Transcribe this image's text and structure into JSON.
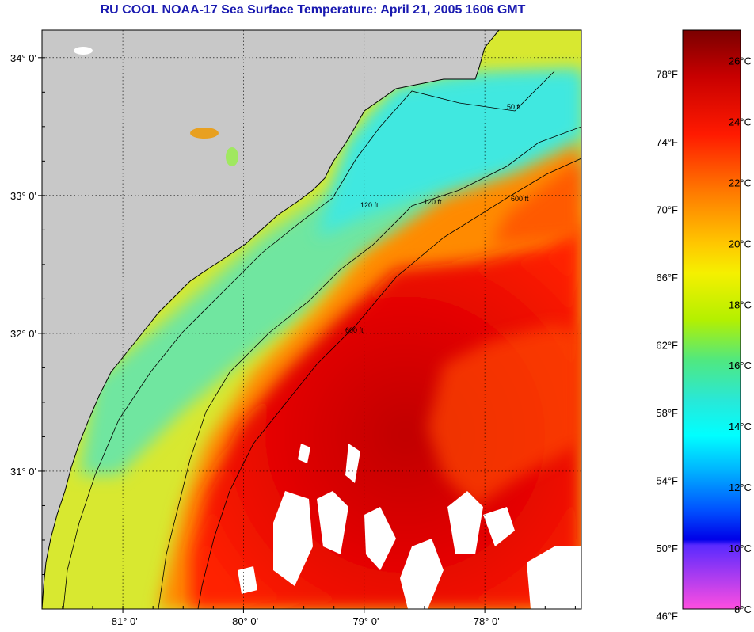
{
  "title": "RU COOL  NOAA-17  Sea Surface Temperature:  April 21, 2005 1606 GMT",
  "map": {
    "lon_ticks": [
      {
        "value": -81,
        "label": "-81° 0'"
      },
      {
        "value": -80,
        "label": "-80° 0'"
      },
      {
        "value": -79,
        "label": "-79° 0'"
      },
      {
        "value": -78,
        "label": "-78° 0'"
      }
    ],
    "lat_ticks": [
      {
        "value": 34,
        "label": "34° 0'"
      },
      {
        "value": 33,
        "label": "33° 0'"
      },
      {
        "value": 32,
        "label": "32° 0'"
      },
      {
        "value": 31,
        "label": "31° 0'"
      }
    ],
    "lon_range": [
      -81.67,
      -77.2
    ],
    "lat_range": [
      30.0,
      34.2
    ],
    "land_color": "#c8c8c8",
    "cloud_color": "#ffffff",
    "isobaths": [
      "50 ft",
      "120 ft",
      "600 ft"
    ]
  },
  "colorbar": {
    "range_c": [
      8,
      27
    ],
    "celsius": [
      "26°C",
      "24°C",
      "22°C",
      "20°C",
      "18°C",
      "16°C",
      "14°C",
      "12°C",
      "10°C",
      "8°C"
    ],
    "fahrenheit": [
      "78°F",
      "74°F",
      "70°F",
      "66°F",
      "62°F",
      "58°F",
      "54°F",
      "50°F",
      "46°F"
    ]
  }
}
